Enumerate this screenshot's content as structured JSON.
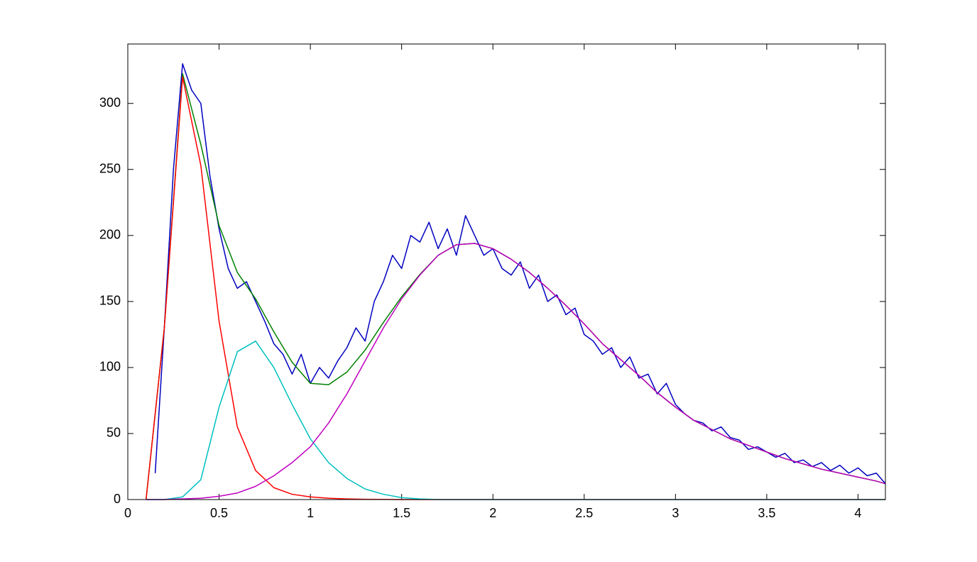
{
  "chart_data": {
    "type": "line",
    "xlim": [
      0,
      4.15
    ],
    "ylim": [
      0,
      345
    ],
    "xticks": [
      0,
      0.5,
      1,
      1.5,
      2,
      2.5,
      3,
      3.5,
      4
    ],
    "yticks": [
      0,
      50,
      100,
      150,
      200,
      250,
      300
    ],
    "series": [
      {
        "color": "#0000c0",
        "x": [
          0.15,
          0.2,
          0.25,
          0.3,
          0.35,
          0.4,
          0.45,
          0.5,
          0.55,
          0.6,
          0.65,
          0.7,
          0.75,
          0.8,
          0.85,
          0.9,
          0.95,
          1,
          1.05,
          1.1,
          1.15,
          1.2,
          1.25,
          1.3,
          1.35,
          1.4,
          1.45,
          1.5,
          1.55,
          1.6,
          1.65,
          1.7,
          1.75,
          1.8,
          1.85,
          1.9,
          1.95,
          2,
          2.05,
          2.1,
          2.15,
          2.2,
          2.25,
          2.3,
          2.35,
          2.4,
          2.45,
          2.5,
          2.55,
          2.6,
          2.65,
          2.7,
          2.75,
          2.8,
          2.85,
          2.9,
          2.95,
          3,
          3.05,
          3.1,
          3.15,
          3.2,
          3.25,
          3.3,
          3.35,
          3.4,
          3.45,
          3.5,
          3.55,
          3.6,
          3.65,
          3.7,
          3.75,
          3.8,
          3.85,
          3.9,
          3.95,
          4,
          4.05,
          4.1,
          4.15
        ],
        "values": [
          20,
          130,
          250,
          330,
          310,
          300,
          245,
          205,
          175,
          160,
          165,
          150,
          135,
          118,
          110,
          95,
          110,
          88,
          100,
          92,
          105,
          115,
          130,
          120,
          150,
          165,
          185,
          175,
          200,
          195,
          210,
          190,
          205,
          185,
          215,
          200,
          185,
          190,
          175,
          170,
          180,
          160,
          170,
          150,
          155,
          140,
          145,
          125,
          120,
          110,
          115,
          100,
          108,
          92,
          95,
          80,
          88,
          72,
          65,
          60,
          58,
          52,
          55,
          47,
          45,
          38,
          40,
          36,
          32,
          35,
          28,
          30,
          25,
          28,
          22,
          26,
          20,
          24,
          18,
          20,
          12
        ]
      },
      {
        "color": "#008000",
        "x": [
          0.1,
          0.2,
          0.3,
          0.4,
          0.5,
          0.6,
          0.7,
          0.8,
          0.9,
          1,
          1.1,
          1.2,
          1.3,
          1.4,
          1.5,
          1.6,
          1.7,
          1.8,
          1.9,
          2,
          2.1,
          2.2,
          2.3,
          2.4,
          2.5,
          2.6,
          2.7,
          2.8,
          2.9,
          3,
          3.1,
          3.2,
          3.3,
          3.4,
          3.5,
          3.6,
          3.7,
          3.8,
          3.9,
          4,
          4.1,
          4.15
        ],
        "values": [
          0,
          130,
          322.5,
          269,
          207.5,
          172,
          152,
          127,
          104,
          88,
          87,
          96.5,
          113.2,
          134.1,
          153.5,
          170.5,
          185,
          193,
          194,
          190,
          182,
          172,
          160,
          147,
          133,
          118,
          106,
          94,
          81,
          70,
          60,
          53,
          46,
          41,
          36,
          31,
          27,
          23,
          20,
          17,
          14,
          12
        ]
      },
      {
        "color": "#ff0000",
        "x": [
          0.1,
          0.2,
          0.3,
          0.4,
          0.5,
          0.6,
          0.7,
          0.8,
          0.9,
          1,
          1.1,
          1.2,
          1.3,
          1.4,
          1.5,
          1.6,
          1.7,
          1.8,
          1.9,
          2,
          2.1,
          2.2,
          2.3,
          2.4,
          2.5,
          2.6,
          2.7,
          2.8,
          2.9,
          3,
          3.1,
          3.2,
          3.3,
          3.4,
          3.5,
          3.6,
          3.7,
          3.8,
          3.9,
          4,
          4.1,
          4.15
        ],
        "values": [
          0,
          130,
          320,
          253,
          135,
          55,
          22,
          9,
          4,
          2,
          1,
          0.5,
          0.2,
          0.1,
          0,
          0,
          0,
          0,
          0,
          0,
          0,
          0,
          0,
          0,
          0,
          0,
          0,
          0,
          0,
          0,
          0,
          0,
          0,
          0,
          0,
          0,
          0,
          0,
          0,
          0,
          0,
          0
        ]
      },
      {
        "color": "#00bfbf",
        "x": [
          0.1,
          0.2,
          0.3,
          0.4,
          0.5,
          0.6,
          0.7,
          0.8,
          0.9,
          1,
          1.1,
          1.2,
          1.3,
          1.4,
          1.5,
          1.6,
          1.7,
          1.8,
          1.9,
          2,
          2.1,
          2.2,
          2.3,
          2.4,
          2.5,
          2.6,
          2.7,
          2.8,
          2.9,
          3,
          3.1,
          3.2,
          3.3,
          3.4,
          3.5,
          3.6,
          3.7,
          3.8,
          3.9,
          4,
          4.1,
          4.15
        ],
        "values": [
          0,
          0,
          2,
          15,
          70,
          112,
          120,
          100,
          72,
          46,
          28,
          16,
          8,
          4,
          1.5,
          0.5,
          0,
          0,
          0,
          0,
          0,
          0,
          0,
          0,
          0,
          0,
          0,
          0,
          0,
          0,
          0,
          0,
          0,
          0,
          0,
          0,
          0,
          0,
          0,
          0,
          0,
          0
        ]
      },
      {
        "color": "#bf00bf",
        "x": [
          0.1,
          0.2,
          0.3,
          0.4,
          0.5,
          0.6,
          0.7,
          0.8,
          0.9,
          1,
          1.1,
          1.2,
          1.3,
          1.4,
          1.5,
          1.6,
          1.7,
          1.8,
          1.9,
          2,
          2.1,
          2.2,
          2.3,
          2.4,
          2.5,
          2.6,
          2.7,
          2.8,
          2.9,
          3,
          3.1,
          3.2,
          3.3,
          3.4,
          3.5,
          3.6,
          3.7,
          3.8,
          3.9,
          4,
          4.1,
          4.15
        ],
        "values": [
          0,
          0,
          0.5,
          1,
          2.5,
          5,
          10,
          18,
          28,
          40,
          58,
          80,
          105,
          130,
          152,
          170,
          185,
          193,
          194,
          190,
          182,
          172,
          160,
          147,
          133,
          118,
          106,
          94,
          81,
          70,
          60,
          53,
          46,
          41,
          36,
          31,
          27,
          23,
          20,
          17,
          14,
          12
        ]
      }
    ]
  }
}
